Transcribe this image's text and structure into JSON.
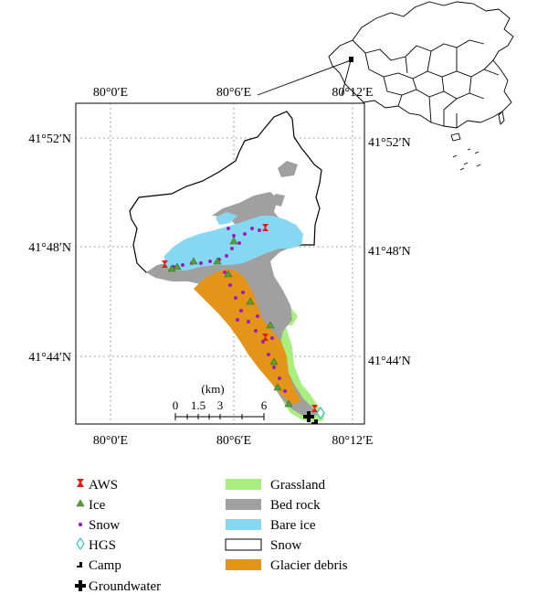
{
  "map": {
    "x_ticks": [
      "80°0′E",
      "80°6′E",
      "80°12′E"
    ],
    "y_ticks": [
      "41°52′N",
      "41°48′N",
      "41°44′N"
    ],
    "scale": {
      "unit": "(km)",
      "labels": [
        "0",
        "1.5",
        "3",
        "6"
      ]
    },
    "colors": {
      "grassland": "#a8ef80",
      "bed_rock": "#a0a0a0",
      "bare_ice": "#86d8f2",
      "glacier_debris": "#e49419",
      "aws": "#e41a1c",
      "ice_marker": "#5a9e3a",
      "snow_marker": "#9b1fc0",
      "hgs": "#34c4bf"
    }
  },
  "legend": {
    "markers": [
      {
        "key": "aws",
        "label": "AWS"
      },
      {
        "key": "ice",
        "label": "Ice"
      },
      {
        "key": "snow",
        "label": "Snow"
      },
      {
        "key": "hgs",
        "label": "HGS"
      },
      {
        "key": "camp",
        "label": "Camp"
      },
      {
        "key": "groundwater",
        "label": "Groundwater"
      }
    ],
    "areas": [
      {
        "key": "grassland",
        "label": "Grassland"
      },
      {
        "key": "bed_rock",
        "label": "Bed rock"
      },
      {
        "key": "bare_ice",
        "label": "Bare ice"
      },
      {
        "key": "snow",
        "label": "Snow"
      },
      {
        "key": "glacier_debris",
        "label": "Glacier debris"
      }
    ]
  }
}
